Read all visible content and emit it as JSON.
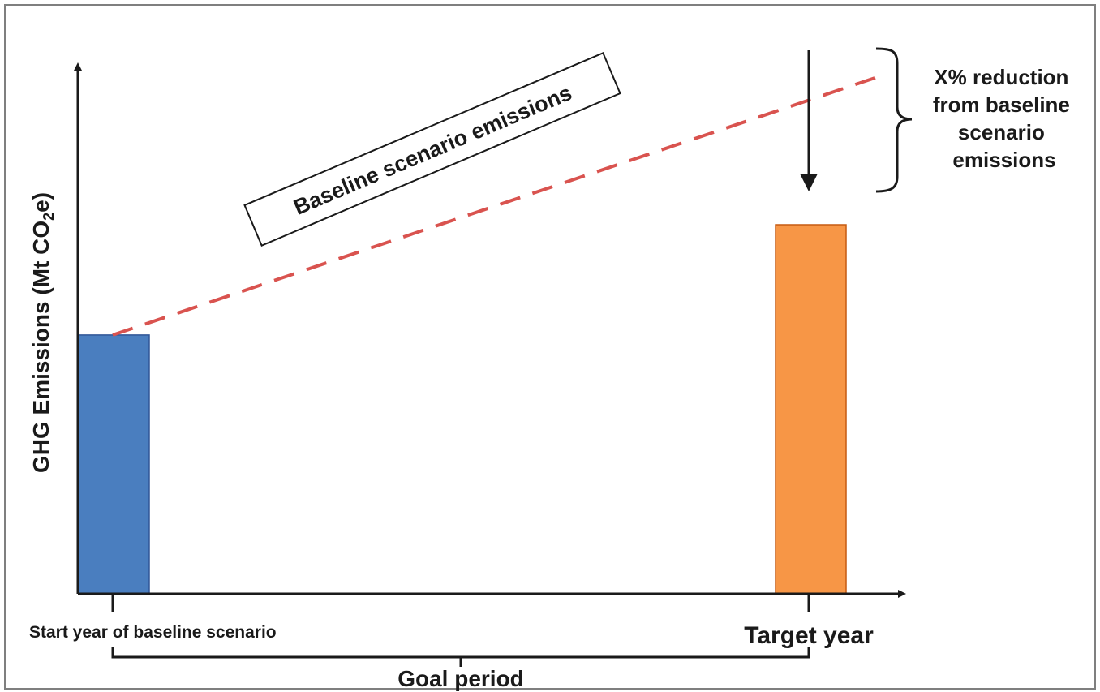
{
  "chart_data": {
    "type": "bar",
    "title": "",
    "ylabel_main": "GHG Emissions (Mt CO",
    "ylabel_sub": "2",
    "ylabel_end": "e)",
    "categories": [
      "Start year of baseline scenario",
      "Target year"
    ],
    "bars": [
      {
        "category": "Start year of baseline scenario",
        "value": 0.54,
        "color": "#4a7ebf"
      },
      {
        "category": "Target year",
        "value": 0.77,
        "color": "#f79646"
      }
    ],
    "baseline_line": {
      "start": 0.54,
      "end": 1.08,
      "color": "#d9534f",
      "style": "dashed"
    },
    "baseline_label": "Baseline scenario emissions",
    "reduction_annotation": [
      "X% reduction",
      "from baseline",
      "scenario",
      "emissions"
    ],
    "goal_period_label": "Goal period",
    "ylim": [
      0,
      1.1
    ]
  },
  "colors": {
    "axis": "#1a1a1a",
    "frame": "#7f7f7f"
  }
}
